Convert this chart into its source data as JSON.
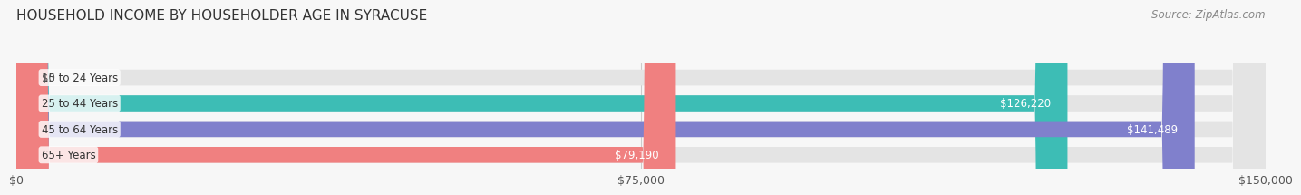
{
  "title": "HOUSEHOLD INCOME BY HOUSEHOLDER AGE IN SYRACUSE",
  "source": "Source: ZipAtlas.com",
  "categories": [
    "15 to 24 Years",
    "25 to 44 Years",
    "45 to 64 Years",
    "65+ Years"
  ],
  "values": [
    0,
    126220,
    141489,
    79190
  ],
  "bar_colors": [
    "#d8a8c8",
    "#3dbdb5",
    "#8080cc",
    "#f08080"
  ],
  "max_value": 150000,
  "xticks": [
    0,
    75000,
    150000
  ],
  "xtick_labels": [
    "$0",
    "$75,000",
    "$150,000"
  ],
  "value_labels": [
    "$0",
    "$126,220",
    "$141,489",
    "$79,190"
  ],
  "title_fontsize": 11,
  "source_fontsize": 8.5,
  "tick_fontsize": 9,
  "bar_label_fontsize": 8.5,
  "category_fontsize": 8.5,
  "background_color": "#f7f7f7",
  "bar_height": 0.62
}
